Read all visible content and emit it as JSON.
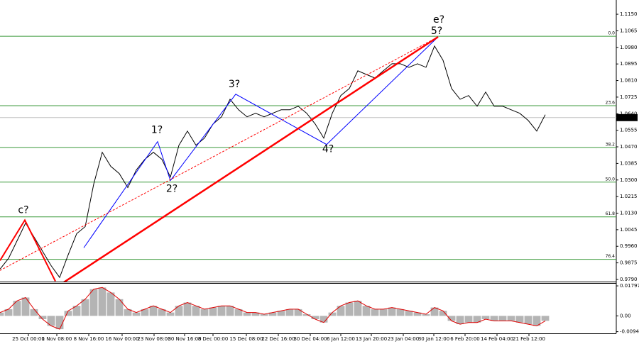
{
  "chart_data": [
    {
      "type": "line",
      "color": "#000000",
      "xlim": [
        0,
        217
      ],
      "ylim": [
        0.9779,
        1.1223
      ],
      "x": [
        0,
        3,
        6,
        9,
        12,
        15,
        18,
        21,
        24,
        27,
        30,
        33,
        36,
        39,
        42,
        45,
        48,
        51,
        54,
        57,
        60,
        63,
        66,
        69,
        72,
        75,
        78,
        81,
        84,
        87,
        90,
        93,
        96,
        99,
        102,
        105,
        108,
        111,
        114,
        117,
        120,
        123,
        126,
        129,
        132,
        135,
        138,
        141,
        144,
        147,
        150,
        153,
        156,
        159,
        162,
        165,
        168,
        171,
        174,
        177,
        180,
        183,
        186,
        189,
        192
      ],
      "values": [
        0.9843,
        0.9898,
        0.9988,
        1.0079,
        1.0007,
        0.9934,
        0.9861,
        0.98,
        0.9916,
        1.0025,
        1.0061,
        1.0279,
        1.0442,
        1.037,
        1.0333,
        1.0261,
        1.0351,
        1.0406,
        1.0442,
        1.0406,
        1.0315,
        1.0478,
        1.0551,
        1.0478,
        1.0515,
        1.0587,
        1.0624,
        1.0714,
        1.066,
        1.0624,
        1.0642,
        1.0624,
        1.0642,
        1.066,
        1.066,
        1.0678,
        1.0642,
        1.0587,
        1.0515,
        1.0642,
        1.0733,
        1.0769,
        1.086,
        1.0841,
        1.0823,
        1.086,
        1.0896,
        1.0896,
        1.0878,
        1.0896,
        1.0878,
        1.0987,
        1.0914,
        1.0769,
        1.0714,
        1.0733,
        1.0678,
        1.0751,
        1.0678,
        1.0678,
        1.066,
        1.0642,
        1.0605,
        1.0551,
        1.0635
      ],
      "yticks": [
        {
          "value": 1.115,
          "label": "1.1150"
        },
        1.1065,
        {
          "value": 1.098,
          "label": "1.0980"
        },
        1.0895,
        {
          "value": 1.081,
          "label": "1.0810"
        },
        1.0725,
        {
          "value": 1.064,
          "label": "1.0640"
        },
        1.0555,
        {
          "value": 1.047,
          "label": "1.0470"
        },
        1.0385,
        {
          "value": 1.03,
          "label": "1.0300"
        },
        1.0215,
        {
          "value": 1.013,
          "label": "1.0130"
        },
        1.0045,
        {
          "value": 0.996,
          "label": "0.9960"
        },
        0.9875,
        {
          "value": 0.979,
          "label": "0.9790"
        }
      ],
      "xticks": [
        {
          "value": 10,
          "label": "25 Oct 00:00"
        },
        {
          "value": 20,
          "label": "1 Nov 08:00"
        },
        {
          "value": 31.25,
          "label": "8 Nov 16:00"
        },
        {
          "value": 43,
          "label": "16 Nov 00:00"
        },
        {
          "value": 54.25,
          "label": "23 Nov 08:00"
        },
        {
          "value": 65,
          "label": "30 Nov 16:00"
        },
        {
          "value": 75,
          "label": "8 Dec 00:00"
        },
        {
          "value": 86.75,
          "label": "15 Dec 08:00"
        },
        {
          "value": 98,
          "label": "22 Dec 16:00"
        },
        {
          "value": 109.25,
          "label": "30 Dec 04:00"
        },
        {
          "value": 120,
          "label": "6 Jan 12:00"
        },
        {
          "value": 130.75,
          "label": "13 Jan 20:00"
        },
        {
          "value": 142,
          "label": "23 Jan 04:00"
        },
        {
          "value": 152.75,
          "label": "30 Jan 12:00"
        },
        {
          "value": 163.75,
          "label": "6 Feb 20:00"
        },
        {
          "value": 175,
          "label": "14 Feb 04:00"
        },
        {
          "value": 186.25,
          "label": "21 Feb 12:00"
        }
      ],
      "current_price": {
        "value": 1.062,
        "label": "1.0620"
      },
      "fib_levels": [
        {
          "label": "0.0",
          "value": 1.1037
        },
        {
          "label": "23.6",
          "value": 1.0681
        },
        {
          "label": "38.2",
          "value": 1.0467
        },
        {
          "label": "50.0",
          "value": 1.0289
        },
        {
          "label": "61.8",
          "value": 1.0111
        },
        {
          "label": "76.4",
          "value": 0.9893
        }
      ],
      "fib_color": "#3c9a3c",
      "lines": [
        {
          "color": "#0000ff",
          "width": 1,
          "dash": false,
          "x": [
            29.5,
            55.5,
            60,
            83,
            115,
            154.25
          ],
          "y": [
            0.9952,
            1.0497,
            1.0297,
            1.074,
            1.0482,
            1.1034
          ]
        },
        {
          "color": "#ff0000",
          "width": 2,
          "dash": false,
          "x": [
            0,
            8.75,
            19.5
          ],
          "y": [
            0.9887,
            1.0094,
            0.9781
          ]
        },
        {
          "color": "#ff0000",
          "width": 2.5,
          "dash": false,
          "x": [
            22,
            154.25
          ],
          "y": [
            0.9771,
            1.1034
          ]
        },
        {
          "color": "#ff0000",
          "width": 1,
          "dash": true,
          "x": [
            0,
            154.25
          ],
          "y": [
            0.9836,
            1.1034
          ]
        }
      ],
      "annotations": [
        {
          "text": "c?",
          "x": 8.25,
          "y": 1.0144,
          "color": "#ff0000"
        },
        {
          "text": "1?",
          "x": 55.25,
          "y": 1.0555,
          "color": "#0000ff"
        },
        {
          "text": "2?",
          "x": 60.5,
          "y": 1.0253,
          "color": "#0000ff"
        },
        {
          "text": "3?",
          "x": 82.5,
          "y": 1.0791,
          "color": "#0000ff"
        },
        {
          "text": "4?",
          "x": 115.5,
          "y": 1.0457,
          "color": "#0000ff"
        },
        {
          "text": "5?",
          "x": 153.75,
          "y": 1.1063,
          "color": "#0000ff"
        },
        {
          "text": "e?",
          "x": 154.5,
          "y": 1.1121,
          "color": "#ff0000"
        }
      ]
    },
    {
      "type": "bar",
      "color": "#b4b4b4",
      "line_color": "#e00000",
      "xlim": [
        0,
        217
      ],
      "ylim": [
        -0.0105,
        0.0197
      ],
      "x": [
        0,
        3,
        6,
        9,
        12,
        15,
        18,
        21,
        24,
        27,
        30,
        33,
        36,
        39,
        42,
        45,
        48,
        51,
        54,
        57,
        60,
        63,
        66,
        69,
        72,
        75,
        78,
        81,
        84,
        87,
        90,
        93,
        96,
        99,
        102,
        105,
        108,
        111,
        114,
        117,
        120,
        123,
        126,
        129,
        132,
        135,
        138,
        141,
        144,
        147,
        150,
        153,
        156,
        159,
        162,
        165,
        168,
        171,
        174,
        177,
        180,
        183,
        186,
        189,
        192
      ],
      "values": [
        0.002,
        0.004,
        0.009,
        0.011,
        0.004,
        -0.002,
        -0.006,
        -0.008,
        0.003,
        0.006,
        0.01,
        0.016,
        0.017,
        0.014,
        0.01,
        0.004,
        0.002,
        0.004,
        0.006,
        0.004,
        0.002,
        0.006,
        0.008,
        0.006,
        0.004,
        0.005,
        0.006,
        0.006,
        0.004,
        0.002,
        0.002,
        0.001,
        0.002,
        0.003,
        0.004,
        0.004,
        0.001,
        -0.002,
        -0.004,
        0.002,
        0.006,
        0.008,
        0.009,
        0.006,
        0.004,
        0.004,
        0.005,
        0.004,
        0.003,
        0.002,
        0.001,
        0.005,
        0.003,
        -0.003,
        -0.005,
        -0.004,
        -0.004,
        -0.002,
        -0.003,
        -0.003,
        -0.003,
        -0.004,
        -0.005,
        -0.006,
        -0.003
      ],
      "yticks": [
        0.01797,
        {
          "value": 0,
          "label": "0.00"
        },
        -0.00948
      ]
    }
  ]
}
